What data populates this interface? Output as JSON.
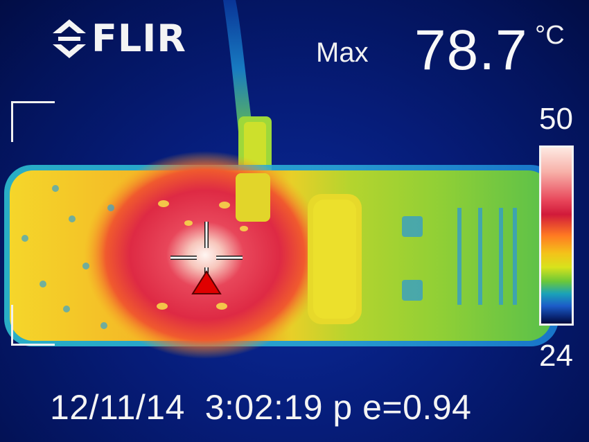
{
  "overlay": {
    "brand": "FLIR",
    "max_label": "Max",
    "max_value": "78.7",
    "max_unit": "°C",
    "scale_high": "50",
    "scale_low": "24",
    "footer": "12/11/14  3:02:19 p e=0.94"
  },
  "icons": {
    "logo_mark": "flir-logo-icon",
    "spot_marker": "crosshair-icon",
    "hotspot_marker": "red-triangle-icon"
  },
  "colors": {
    "background": "#03135a",
    "hot": "#d11a3a",
    "warm": "#f4c21a",
    "cool": "#6cc838",
    "hotspot_marker": "#e00000"
  }
}
